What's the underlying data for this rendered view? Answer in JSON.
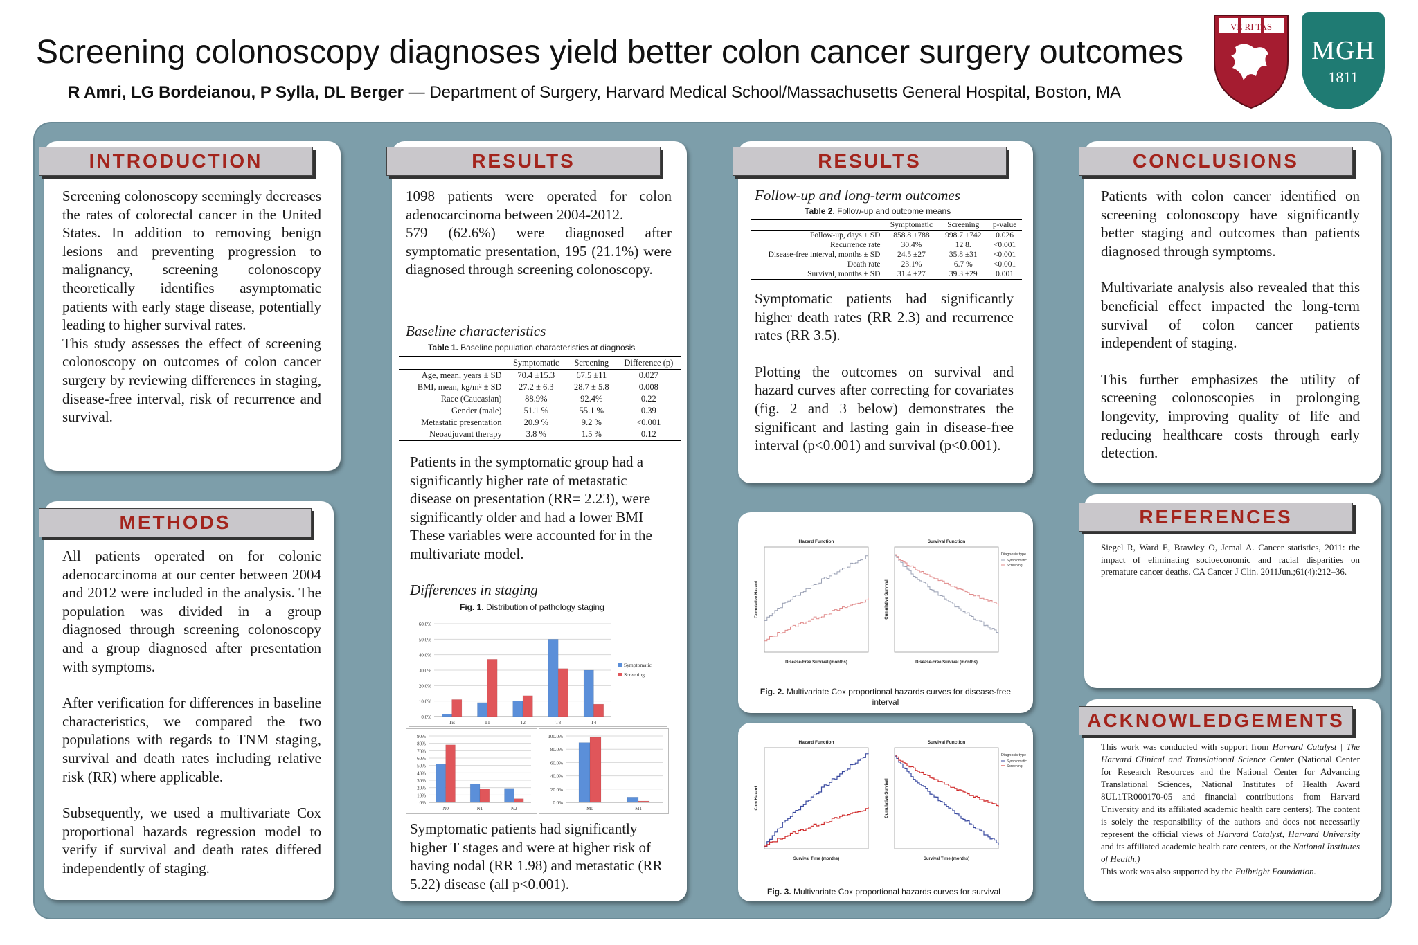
{
  "header": {
    "title": "Screening colonoscopy diagnoses yield better colon cancer surgery outcomes",
    "authors": "R Amri, LG Bordeianou, P Sylla, DL Berger",
    "affiliation": " — Department of Surgery, Harvard Medical School/Massachusetts General Hospital, Boston, MA",
    "logo_harvard": "VE RI TAS",
    "logo_mgh_name": "MGH",
    "logo_mgh_year": "1811"
  },
  "colors": {
    "board": "#7d9eaa",
    "header_text": "#a3241c",
    "symptomatic": "#5b8fd9",
    "screening": "#e0565a"
  },
  "introduction": {
    "heading": "INTRODUCTION",
    "p1": "Screening colonoscopy seemingly decreases the rates of colorectal cancer in the United States. In addition to removing benign lesions and preventing progression to malignancy, screening colonoscopy theoretically identifies asymptomatic patients with early stage disease, potentially leading to higher survival rates.",
    "p2": "This study assesses the effect of screening colonoscopy on outcomes of colon cancer surgery by reviewing differences in staging, disease-free interval, risk of recurrence and survival."
  },
  "methods": {
    "heading": "METHODS",
    "p1": "All patients operated on for colonic adenocarcinoma at our center between 2004 and 2012 were included in the analysis. The population was divided in a group diagnosed through screening colonoscopy and a group diagnosed after presentation with symptoms.",
    "p2": "After verification for differences in baseline characteristics, we compared the two populations with regards to TNM staging, survival and death rates including relative risk (RR) where applicable.",
    "p3": "Subsequently, we used a multivariate Cox proportional hazards regression model to verify if survival and death rates differed independently of staging."
  },
  "results1": {
    "heading": "RESULTS",
    "p1": "1098 patients were operated for colon adenocarcinoma between 2004-2012.",
    "p2": "579 (62.6%) were diagnosed after symptomatic presentation, 195 (21.1%) were diagnosed through screening colonoscopy.",
    "baseline_title": "Baseline characteristics",
    "table1_label": "Table 1.",
    "table1_caption": " Baseline population characteristics at diagnosis",
    "table1_headers": [
      "",
      "Symptomatic",
      "Screening",
      "Difference (p)"
    ],
    "table1_rows": [
      [
        "Age, mean, years ± SD",
        "70.4 ±15.3",
        "67.5 ±11",
        "0.027"
      ],
      [
        "BMI, mean, kg/m² ± SD",
        "27.2 ± 6.3",
        "28.7 ± 5.8",
        "0.008"
      ],
      [
        "Race (Caucasian)",
        "88.9%",
        "92.4%",
        "0.22"
      ],
      [
        "Gender  (male)",
        "51.1 %",
        "55.1 %",
        "0.39"
      ],
      [
        "Metastatic presentation",
        "20.9 %",
        "9.2 %",
        "<0.001"
      ],
      [
        "Neoadjuvant therapy",
        "3.8 %",
        "1.5 %",
        "0.12"
      ]
    ],
    "p3": "Patients in the symptomatic group had a significantly higher rate of metastatic disease on presentation (RR= 2.23), were significantly older and had a lower BMI These variables were accounted for in the multivariate model.",
    "staging_title": "Differences in staging",
    "fig1_label": "Fig. 1.",
    "fig1_caption": "  Distribution of pathology staging",
    "p4": "Symptomatic patients had significantly higher T stages and were at higher risk of having nodal (RR 1.98) and metastatic (RR 5.22) disease (all p<0.001)."
  },
  "results2": {
    "heading": "RESULTS",
    "followup_title": "Follow-up and long-term outcomes",
    "table2_label": "Table 2.",
    "table2_caption": " Follow-up and outcome means",
    "table2_headers": [
      "",
      "Symptomatic",
      "Screening",
      "p-value"
    ],
    "table2_rows": [
      [
        "Follow-up, days ± SD",
        "858.8 ±788",
        "998.7 ±742",
        "0.026"
      ],
      [
        "Recurrence rate",
        "30.4%",
        "12 8.",
        "<0.001"
      ],
      [
        "Disease-free interval, months ± SD",
        "24.5 ±27",
        "35.8 ±31",
        "<0.001"
      ],
      [
        "Death rate",
        "23.1%",
        "6.7 %",
        "<0.001"
      ],
      [
        "Survival, months ± SD",
        "31.4 ±27",
        "39.3 ±29",
        "0.001"
      ]
    ],
    "p1": "Symptomatic patients had significantly higher death rates (RR 2.3) and recurrence rates (RR 3.5).",
    "p2": "Plotting the outcomes on survival and hazard curves after correcting for covariates (fig. 2 and 3 below) demonstrates the significant and lasting gain in disease-free interval (p<0.001) and survival (p<0.001).",
    "fig2_label": "Fig. 2.",
    "fig2_caption": " Multivariate Cox proportional hazards curves for disease-free interval",
    "fig3_label": "Fig. 3.",
    "fig3_caption": " Multivariate Cox proportional hazards curves for survival",
    "fig2_left_title": "Hazard Function",
    "fig2_right_title": "Survival Function",
    "fig2_left_ylabel": "Cumulative Hazard",
    "fig2_right_ylabel": "Cumulative Survival",
    "fig2_xlabel": "Disease-Free Survival (months)",
    "fig3_left_title": "Hazard Function",
    "fig3_right_title": "Survival Function",
    "fig3_left_ylabel": "Cum Hazard",
    "fig3_right_ylabel": "Cumulative Survival",
    "fig3_xlabel": "Survival Time (months)",
    "legend_title": "Diagnosis type",
    "legend_items": [
      "Symptomatic",
      "Screening"
    ]
  },
  "conclusions": {
    "heading": "CONCLUSIONS",
    "p1": "Patients with colon cancer identified on screening colonoscopy have significantly better staging and outcomes than patients diagnosed through symptoms.",
    "p2": "Multivariate analysis also revealed that this beneficial effect impacted the long-term survival of colon cancer patients independent of staging.",
    "p3": "This further emphasizes the utility of screening colonoscopies in prolonging longevity, improving quality of life and reducing healthcare costs through early detection."
  },
  "references": {
    "heading": "REFERENCES",
    "text": "Siegel R, Ward E, Brawley O, Jemal A. Cancer statistics, 2011: the impact of eliminating socioeconomic and racial disparities on premature cancer deaths. CA Cancer J Clin. 2011Jun.;61(4):212–36."
  },
  "acknowledgements": {
    "heading": "ACKNOWLEDGEMENTS",
    "t1": "This work was conducted with support from ",
    "i1": "Harvard Catalyst | The Harvard Clinical and Translational Science Center",
    "t2": " (National Center for Research Resources and the National Center for Advancing Translational Sciences, National Institutes of Health Award 8UL1TR000170-05 and financial contributions from Harvard University and its affiliated academic health care centers). The content is solely the responsibility of the authors and does not necessarily represent the official views of ",
    "i2": "Harvard Catalyst, Harvard University",
    "t3": " and its affiliated academic health care centers, or the ",
    "i3": "National Institutes of Health.)",
    "t4": "This work was also supported by the ",
    "i4": "Fulbright Foundation."
  },
  "chart_data": [
    {
      "type": "bar",
      "categories": [
        "Tis",
        "T1",
        "T2",
        "T3",
        "T4"
      ],
      "series": [
        {
          "name": "Symptomatic",
          "values": [
            1.5,
            9,
            10,
            50,
            30
          ]
        },
        {
          "name": "Screening",
          "values": [
            11,
            37,
            13.5,
            31,
            8
          ]
        }
      ],
      "y_ticks": [
        "0.0%",
        "10.0%",
        "20.0%",
        "30.0%",
        "40.0%",
        "50.0%",
        "60.0%"
      ],
      "ylim": [
        0,
        60
      ]
    },
    {
      "type": "bar",
      "categories": [
        "N0",
        "N1",
        "N2"
      ],
      "series": [
        {
          "name": "Symptomatic",
          "values": [
            52,
            25,
            19
          ]
        },
        {
          "name": "Screening",
          "values": [
            78,
            18,
            5
          ]
        }
      ],
      "y_ticks": [
        "0%",
        "10%",
        "20%",
        "30%",
        "40%",
        "50%",
        "60%",
        "70%",
        "80%",
        "90%"
      ],
      "ylim": [
        0,
        90
      ]
    },
    {
      "type": "bar",
      "categories": [
        "M0",
        "M1"
      ],
      "series": [
        {
          "name": "Symptomatic",
          "values": [
            90,
            8
          ]
        },
        {
          "name": "Screening",
          "values": [
            98,
            2
          ]
        }
      ],
      "y_ticks": [
        ".0.0%",
        "20.0%",
        "40.0%",
        "60.0%",
        "80.0%",
        "100.0%"
      ],
      "ylim": [
        0,
        100
      ]
    }
  ]
}
